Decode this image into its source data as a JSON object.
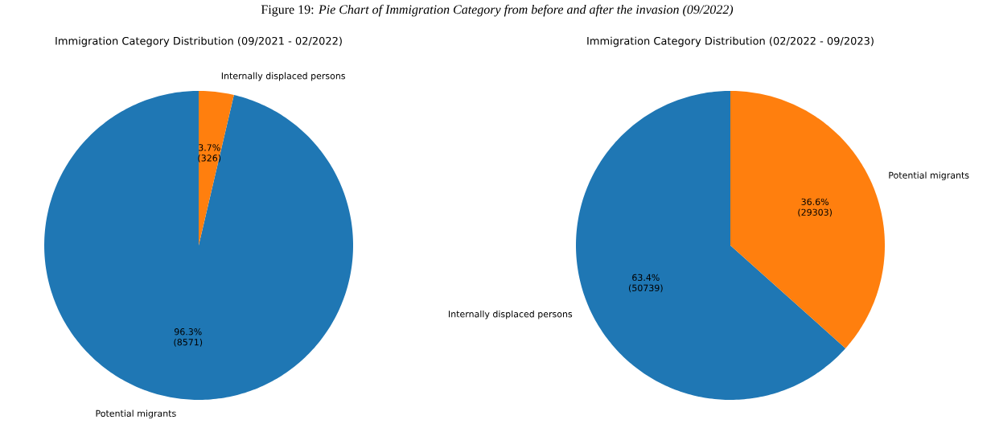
{
  "chart_data": [
    {
      "type": "pie",
      "title": "Immigration Category Distribution (09/2021 - 02/2022)",
      "categories": [
        "Potential migrants",
        "Internally displaced persons"
      ],
      "values": [
        8571,
        326
      ],
      "colors": [
        "#1f77b4",
        "#ff7f0e"
      ],
      "value_labels": [
        "96.3% (8571)",
        "3.7% (326)"
      ],
      "annotations": [
        "Figure 19: *Pie Chart of Immigration Category from before and after the invasion (09/2022)*"
      ]
    },
    {
      "type": "pie",
      "title": "Immigration Category Distribution (02/2022 - 09/2023)",
      "categories": [
        "Internally displaced persons",
        "Potential migrants"
      ],
      "values": [
        50739,
        29303
      ],
      "colors": [
        "#1f77b4",
        "#ff7f0e"
      ],
      "value_labels": [
        "63.4% (50739)",
        "36.6% (29303)"
      ]
    }
  ]
}
